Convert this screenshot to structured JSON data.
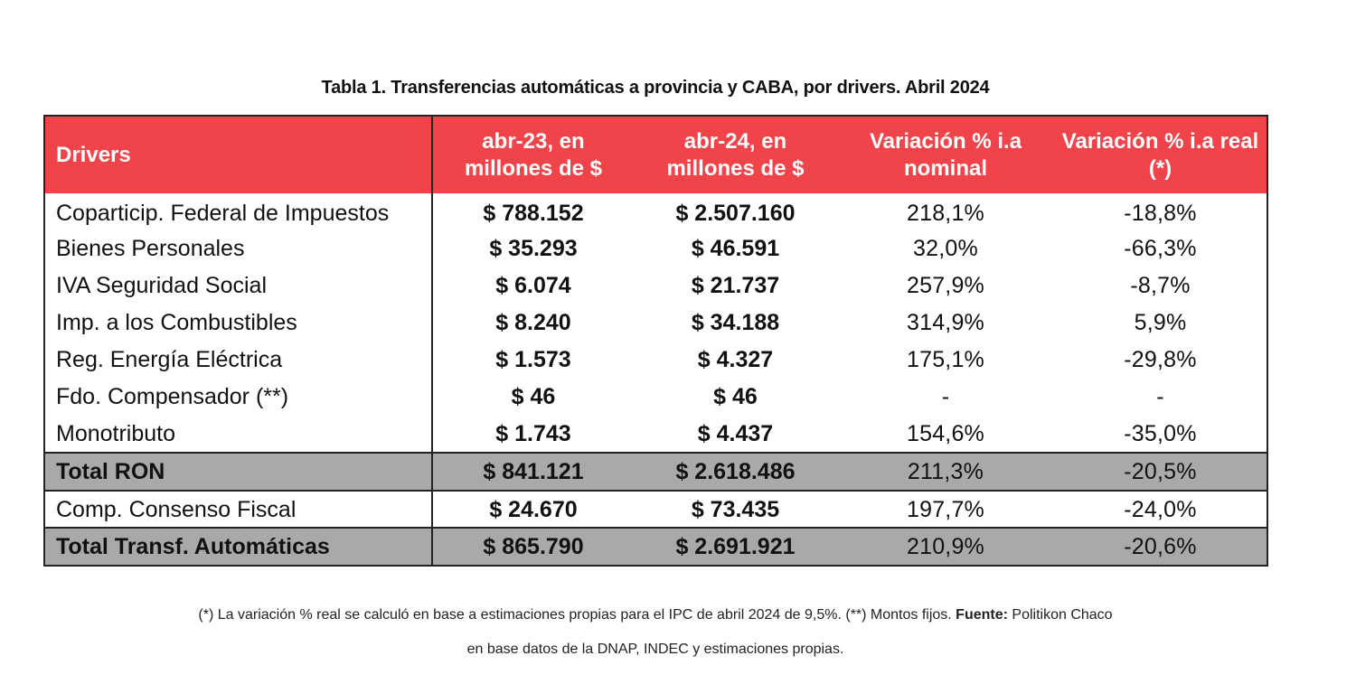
{
  "title": "Tabla 1. Transferencias automáticas a provincia y CABA, por drivers. Abril 2024",
  "header": {
    "col0": "Drivers",
    "col1": "abr-23, en millones de $",
    "col2": "abr-24, en millones de $",
    "col3": "Variación % i.a nominal",
    "col4": "Variación % i.a real (*)"
  },
  "rows": [
    {
      "name": "Coparticip. Federal de Impuestos",
      "abr23": "$ 788.152",
      "abr24": "$ 2.507.160",
      "nominal": "218,1%",
      "real": "-18,8%"
    },
    {
      "name": "Bienes Personales",
      "abr23": "$ 35.293",
      "abr24": "$ 46.591",
      "nominal": "32,0%",
      "real": "-66,3%"
    },
    {
      "name": "IVA Seguridad Social",
      "abr23": "$ 6.074",
      "abr24": "$ 21.737",
      "nominal": "257,9%",
      "real": "-8,7%"
    },
    {
      "name": "Imp. a los Combustibles",
      "abr23": "$ 8.240",
      "abr24": "$ 34.188",
      "nominal": "314,9%",
      "real": "5,9%"
    },
    {
      "name": "Reg. Energía Eléctrica",
      "abr23": "$ 1.573",
      "abr24": "$ 4.327",
      "nominal": "175,1%",
      "real": "-29,8%"
    },
    {
      "name": "Fdo. Compensador (**)",
      "abr23": "$ 46",
      "abr24": "$ 46",
      "nominal": "-",
      "real": "-"
    },
    {
      "name": "Monotributo",
      "abr23": "$ 1.743",
      "abr24": "$ 4.437",
      "nominal": "154,6%",
      "real": "-35,0%"
    }
  ],
  "total_ron": {
    "name": "Total RON",
    "abr23": "$ 841.121",
    "abr24": "$ 2.618.486",
    "nominal": "211,3%",
    "real": "-20,5%"
  },
  "consenso": {
    "name": "Comp. Consenso Fiscal",
    "abr23": "$ 24.670",
    "abr24": "$ 73.435",
    "nominal": "197,7%",
    "real": "-24,0%"
  },
  "total_transf": {
    "name": "Total Transf. Automáticas",
    "abr23": "$ 865.790",
    "abr24": "$ 2.691.921",
    "nominal": "210,9%",
    "real": "-20,6%"
  },
  "footnote": {
    "line1_pre": "(*) La variación % real se calculó en base a estimaciones propias para el IPC de abril 2024 de 9,5%. (**) Montos fijos. ",
    "line1_bold": "Fuente:",
    "line1_post": " Politikon Chaco",
    "line2": "en base datos de la DNAP, INDEC y estimaciones propias."
  },
  "colors": {
    "header_bg": "#f0434a",
    "total_bg": "#a9a9a9",
    "border": "#222222"
  }
}
